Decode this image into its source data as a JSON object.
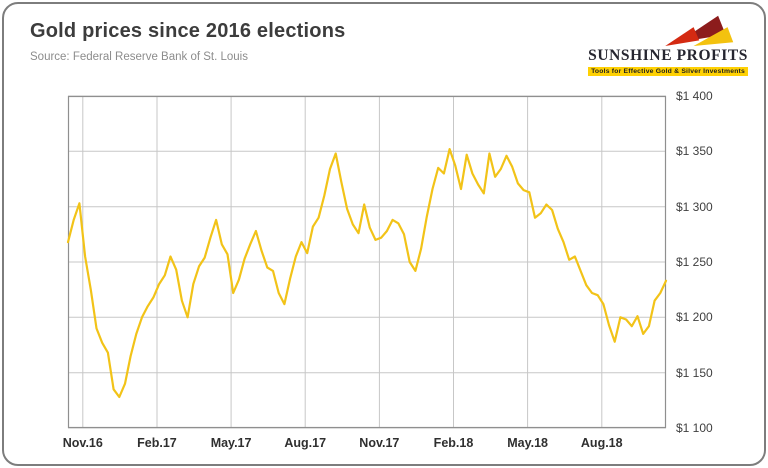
{
  "header": {
    "title": "Gold prices since 2016 elections",
    "source": "Source: Federal Reserve Bank of St. Louis"
  },
  "logo": {
    "wordmark": "SUNSHINE PROFITS",
    "tagline": "Tools for Effective Gold & Silver Investments",
    "mark_colors": {
      "dark_red": "#8c1c1c",
      "red": "#d42a12",
      "yellow": "#f3c20f"
    }
  },
  "chart_data": {
    "type": "line",
    "title": "Gold prices since 2016 elections",
    "grid": true,
    "legend": "none",
    "y_axis_position": "right",
    "ylim": [
      1100,
      1400
    ],
    "x_start_month": -0.6,
    "x_end_month": 23.6,
    "x_ticks": [
      {
        "month": 0,
        "label": "Nov.16"
      },
      {
        "month": 3,
        "label": "Feb.17"
      },
      {
        "month": 6,
        "label": "May.17"
      },
      {
        "month": 9,
        "label": "Aug.17"
      },
      {
        "month": 12,
        "label": "Nov.17"
      },
      {
        "month": 15,
        "label": "Feb.18"
      },
      {
        "month": 18,
        "label": "May.18"
      },
      {
        "month": 21,
        "label": "Aug.18"
      }
    ],
    "y_ticks": [
      {
        "value": 1400,
        "label": "$1 400"
      },
      {
        "value": 1350,
        "label": "$1 350"
      },
      {
        "value": 1300,
        "label": "$1 300"
      },
      {
        "value": 1250,
        "label": "$1 250"
      },
      {
        "value": 1200,
        "label": "$1 200"
      },
      {
        "value": 1150,
        "label": "$1 150"
      },
      {
        "value": 1100,
        "label": "$1 100"
      }
    ],
    "series": [
      {
        "name": "Gold price",
        "color": "#F2C318",
        "values": [
          1268,
          1288,
          1303,
          1255,
          1225,
          1190,
          1177,
          1168,
          1135,
          1128,
          1140,
          1165,
          1185,
          1200,
          1210,
          1218,
          1230,
          1238,
          1255,
          1243,
          1215,
          1200,
          1230,
          1246,
          1254,
          1272,
          1288,
          1266,
          1257,
          1222,
          1234,
          1253,
          1266,
          1278,
          1260,
          1245,
          1242,
          1222,
          1212,
          1235,
          1255,
          1268,
          1258,
          1282,
          1290,
          1310,
          1334,
          1348,
          1322,
          1298,
          1284,
          1276,
          1302,
          1281,
          1270,
          1272,
          1278,
          1288,
          1285,
          1275,
          1250,
          1242,
          1262,
          1291,
          1316,
          1335,
          1330,
          1352,
          1337,
          1316,
          1347,
          1330,
          1320,
          1312,
          1348,
          1327,
          1334,
          1346,
          1336,
          1321,
          1315,
          1313,
          1290,
          1294,
          1302,
          1297,
          1280,
          1268,
          1252,
          1255,
          1242,
          1229,
          1222,
          1220,
          1212,
          1193,
          1178,
          1200,
          1198,
          1192,
          1201,
          1185,
          1192,
          1215,
          1222,
          1233
        ]
      }
    ]
  }
}
